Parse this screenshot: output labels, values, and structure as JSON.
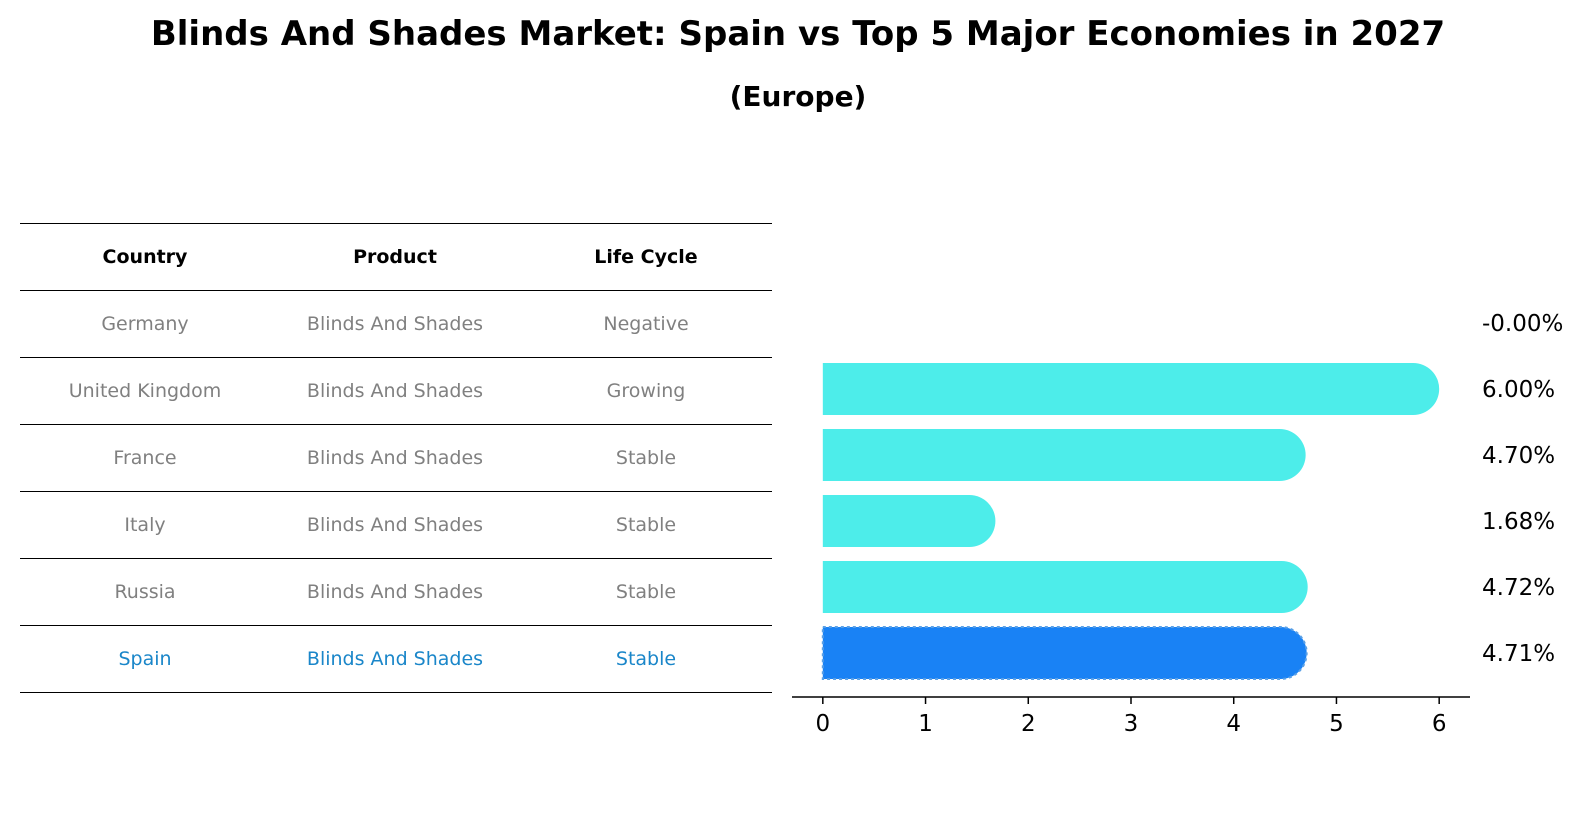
{
  "title": "Blinds And Shades Market: Spain vs Top 5 Major Economies in 2027",
  "subtitle": "(Europe)",
  "colors": {
    "bar": "#4dedea",
    "highlight_bar": "#1982f5",
    "table_text": "#808080",
    "highlight_text": "#1a86c9"
  },
  "table": {
    "headers": [
      "Country",
      "Product",
      "Life Cycle"
    ],
    "rows": [
      {
        "country": "Germany",
        "product": "Blinds And Shades",
        "life_cycle": "Negative"
      },
      {
        "country": "United Kingdom",
        "product": "Blinds And Shades",
        "life_cycle": "Growing"
      },
      {
        "country": "France",
        "product": "Blinds And Shades",
        "life_cycle": "Stable"
      },
      {
        "country": "Italy",
        "product": "Blinds And Shades",
        "life_cycle": "Stable"
      },
      {
        "country": "Russia",
        "product": "Blinds And Shades",
        "life_cycle": "Stable"
      },
      {
        "country": "Spain",
        "product": "Blinds And Shades",
        "life_cycle": "Stable"
      }
    ]
  },
  "chart_data": {
    "type": "bar",
    "orientation": "horizontal",
    "categories": [
      "Germany",
      "United Kingdom",
      "France",
      "Italy",
      "Russia",
      "Spain"
    ],
    "values": [
      -0.0,
      6.0,
      4.7,
      1.68,
      4.72,
      4.71
    ],
    "labels": [
      "-0.00%",
      "6.00%",
      "4.70%",
      "1.68%",
      "4.72%",
      "4.71%"
    ],
    "highlight": "Spain",
    "xticks": [
      "0",
      "1",
      "2",
      "3",
      "4",
      "5",
      "6"
    ],
    "xlim": [
      -0.3,
      6.3
    ],
    "grid": false
  }
}
